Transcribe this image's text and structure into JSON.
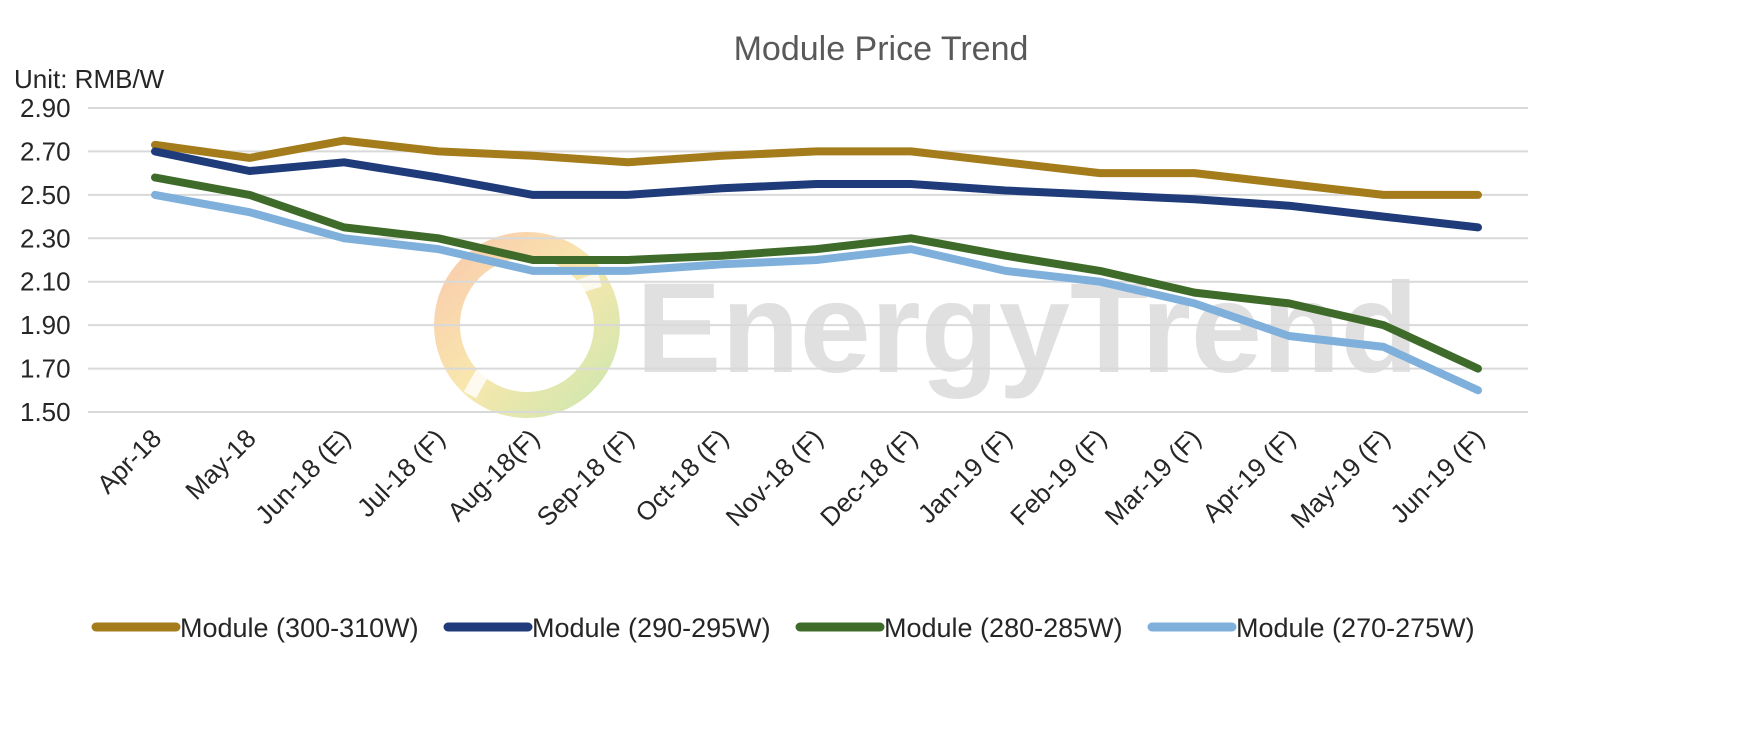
{
  "chart_data": {
    "type": "line",
    "title": "Module Price Trend",
    "unit_label": "Unit: RMB/W",
    "watermark": "EnergyTrend",
    "ylim": [
      1.5,
      2.9
    ],
    "yticks": [
      "2.90",
      "2.70",
      "2.50",
      "2.30",
      "2.10",
      "1.90",
      "1.70",
      "1.50"
    ],
    "ytick_values": [
      2.9,
      2.7,
      2.5,
      2.3,
      2.1,
      1.9,
      1.7,
      1.5
    ],
    "grid": true,
    "legend_position": "bottom",
    "categories": [
      "Apr-18",
      "May-18",
      "Jun-18 (E)",
      "Jul-18 (F)",
      "Aug-18(F)",
      "Sep-18 (F)",
      "Oct-18 (F)",
      "Nov-18 (F)",
      "Dec-18 (F)",
      "Jan-19 (F)",
      "Feb-19 (F)",
      "Mar-19 (F)",
      "Apr-19 (F)",
      "May-19 (F)",
      "Jun-19 (F)"
    ],
    "series": [
      {
        "name": "Module (300-310W)",
        "color": "#a57c1b",
        "values": [
          2.73,
          2.67,
          2.75,
          2.7,
          2.68,
          2.65,
          2.68,
          2.7,
          2.7,
          2.65,
          2.6,
          2.6,
          2.55,
          2.5,
          2.5
        ]
      },
      {
        "name": "Module (290-295W)",
        "color": "#1f3b7a",
        "values": [
          2.7,
          2.61,
          2.65,
          2.58,
          2.5,
          2.5,
          2.53,
          2.55,
          2.55,
          2.52,
          2.5,
          2.48,
          2.45,
          2.4,
          2.35
        ]
      },
      {
        "name": "Module (280-285W)",
        "color": "#3f6b2a",
        "values": [
          2.58,
          2.5,
          2.35,
          2.3,
          2.2,
          2.2,
          2.22,
          2.25,
          2.3,
          2.22,
          2.15,
          2.05,
          2.0,
          1.9,
          1.7
        ]
      },
      {
        "name": "Module (270-275W)",
        "color": "#7fb0dc",
        "values": [
          2.5,
          2.42,
          2.3,
          2.25,
          2.15,
          2.15,
          2.18,
          2.2,
          2.25,
          2.15,
          2.1,
          2.0,
          1.85,
          1.8,
          1.6
        ]
      }
    ]
  }
}
